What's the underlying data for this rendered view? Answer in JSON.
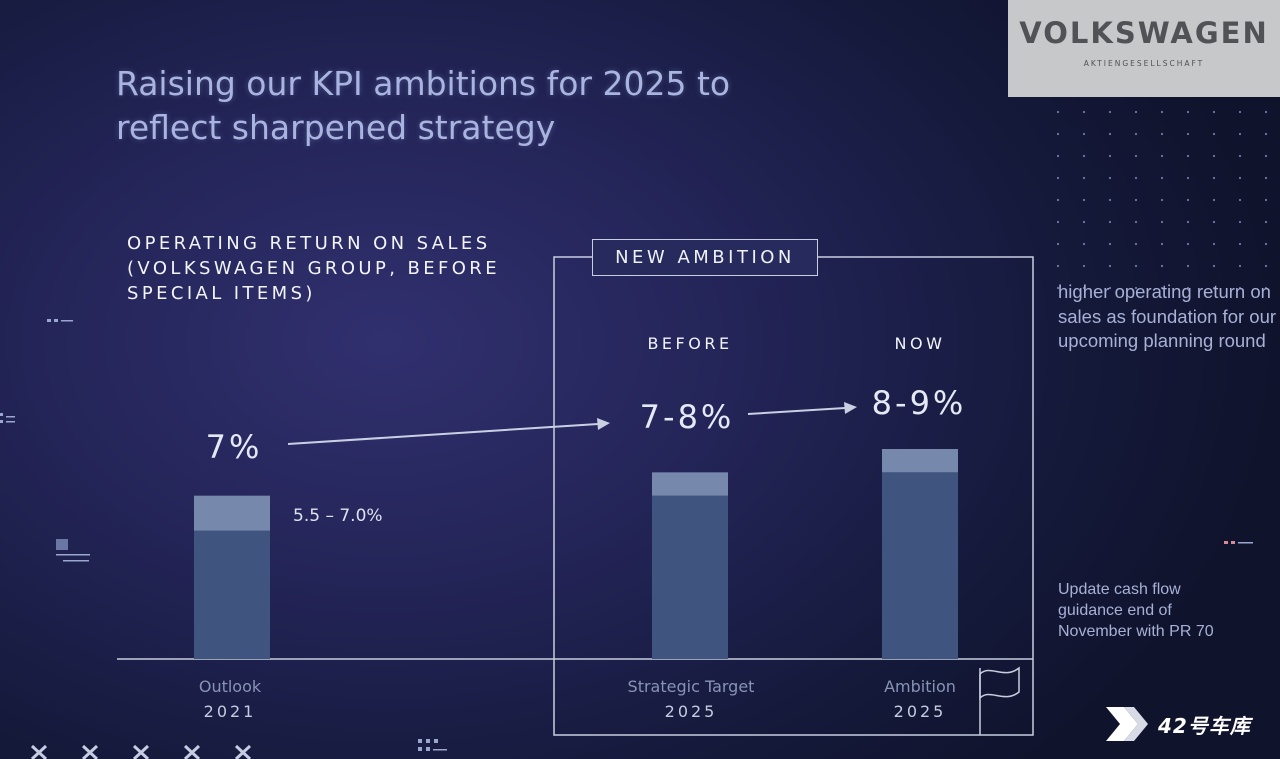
{
  "logo": {
    "brand": "VOLKSWAGEN",
    "sub": "AKTIENGESELLSCHAFT"
  },
  "new_ambition_label": "NEW AMBITION",
  "column_headers": {
    "before": "BEFORE",
    "now": "NOW"
  },
  "side_notes": [
    "higher operating return on sales as foundation for our upcoming planning round",
    "Update cash flow guidance end of November with PR 70"
  ],
  "watermark": "42号车库",
  "chart_data": {
    "type": "bar",
    "title": "Raising our KPI ambitions for 2025 to reflect sharpened strategy",
    "metric": "OPERATING RETURN ON SALES (VOLKSWAGEN GROUP, BEFORE SPECIAL ITEMS)",
    "categories": [
      {
        "name": "Outlook",
        "year": "2021"
      },
      {
        "name": "Strategic Target",
        "year": "2025"
      },
      {
        "name": "Ambition",
        "year": "2025"
      }
    ],
    "ranges": [
      {
        "low": 5.5,
        "high": 7.0,
        "value_label": "7%",
        "range_label": "5.5 – 7.0%"
      },
      {
        "low": 7.0,
        "high": 8.0,
        "value_label": "7-8%"
      },
      {
        "low": 8.0,
        "high": 9.0,
        "value_label": "8-9%"
      }
    ],
    "unit": "%",
    "ylim": [
      0,
      9.5
    ],
    "grid": false,
    "colors": {
      "bar_base": "#3f5580",
      "bar_range": "#7688ab"
    }
  }
}
